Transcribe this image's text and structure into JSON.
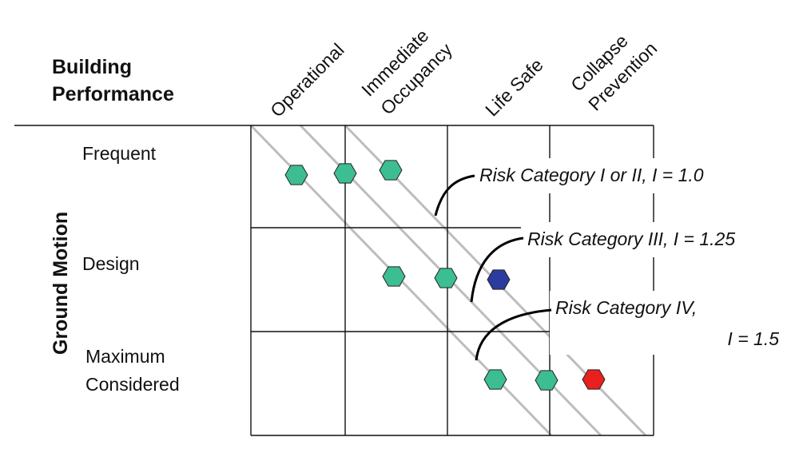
{
  "header": {
    "title_line1": "Building",
    "title_line2": "Performance",
    "y_axis_title": "Ground Motion"
  },
  "columns": [
    {
      "lines": [
        "Operational"
      ]
    },
    {
      "lines": [
        "Immediate",
        "Occupancy"
      ]
    },
    {
      "lines": [
        "Life Safe"
      ]
    },
    {
      "lines": [
        "Collapse",
        "Prevention"
      ]
    }
  ],
  "rows": [
    {
      "lines": [
        "Frequent"
      ]
    },
    {
      "lines": [
        "Design"
      ]
    },
    {
      "lines": [
        "Maximum",
        "Considered"
      ]
    }
  ],
  "callouts": [
    {
      "lines": [
        "Risk Category I or II, I = 1.0"
      ]
    },
    {
      "lines": [
        "Risk Category III, I = 1.25"
      ]
    },
    {
      "lines": [
        "Risk Category IV,",
        "I = 1.5"
      ]
    }
  ],
  "colors": {
    "marker_green": "#3dbd92",
    "marker_blue": "#2b3b9e",
    "marker_red": "#e8201e",
    "diagonal_gray": "#bdbdbd",
    "grid": "#111111"
  },
  "markers": [
    {
      "row": "Frequent",
      "column": "Operational",
      "color": "marker_green"
    },
    {
      "row": "Frequent",
      "column": "Immediate Occupancy",
      "color": "marker_green"
    },
    {
      "row": "Frequent",
      "column": "Immediate Occupancy",
      "color": "marker_green"
    },
    {
      "row": "Design",
      "column": "Immediate Occupancy",
      "color": "marker_green"
    },
    {
      "row": "Design",
      "column": "Life Safe",
      "color": "marker_green"
    },
    {
      "row": "Design",
      "column": "Life Safe",
      "color": "marker_blue"
    },
    {
      "row": "Maximum Considered",
      "column": "Life Safe",
      "color": "marker_green"
    },
    {
      "row": "Maximum Considered",
      "column": "Collapse Prevention",
      "color": "marker_green"
    },
    {
      "row": "Maximum Considered",
      "column": "Collapse Prevention",
      "color": "marker_red"
    }
  ]
}
